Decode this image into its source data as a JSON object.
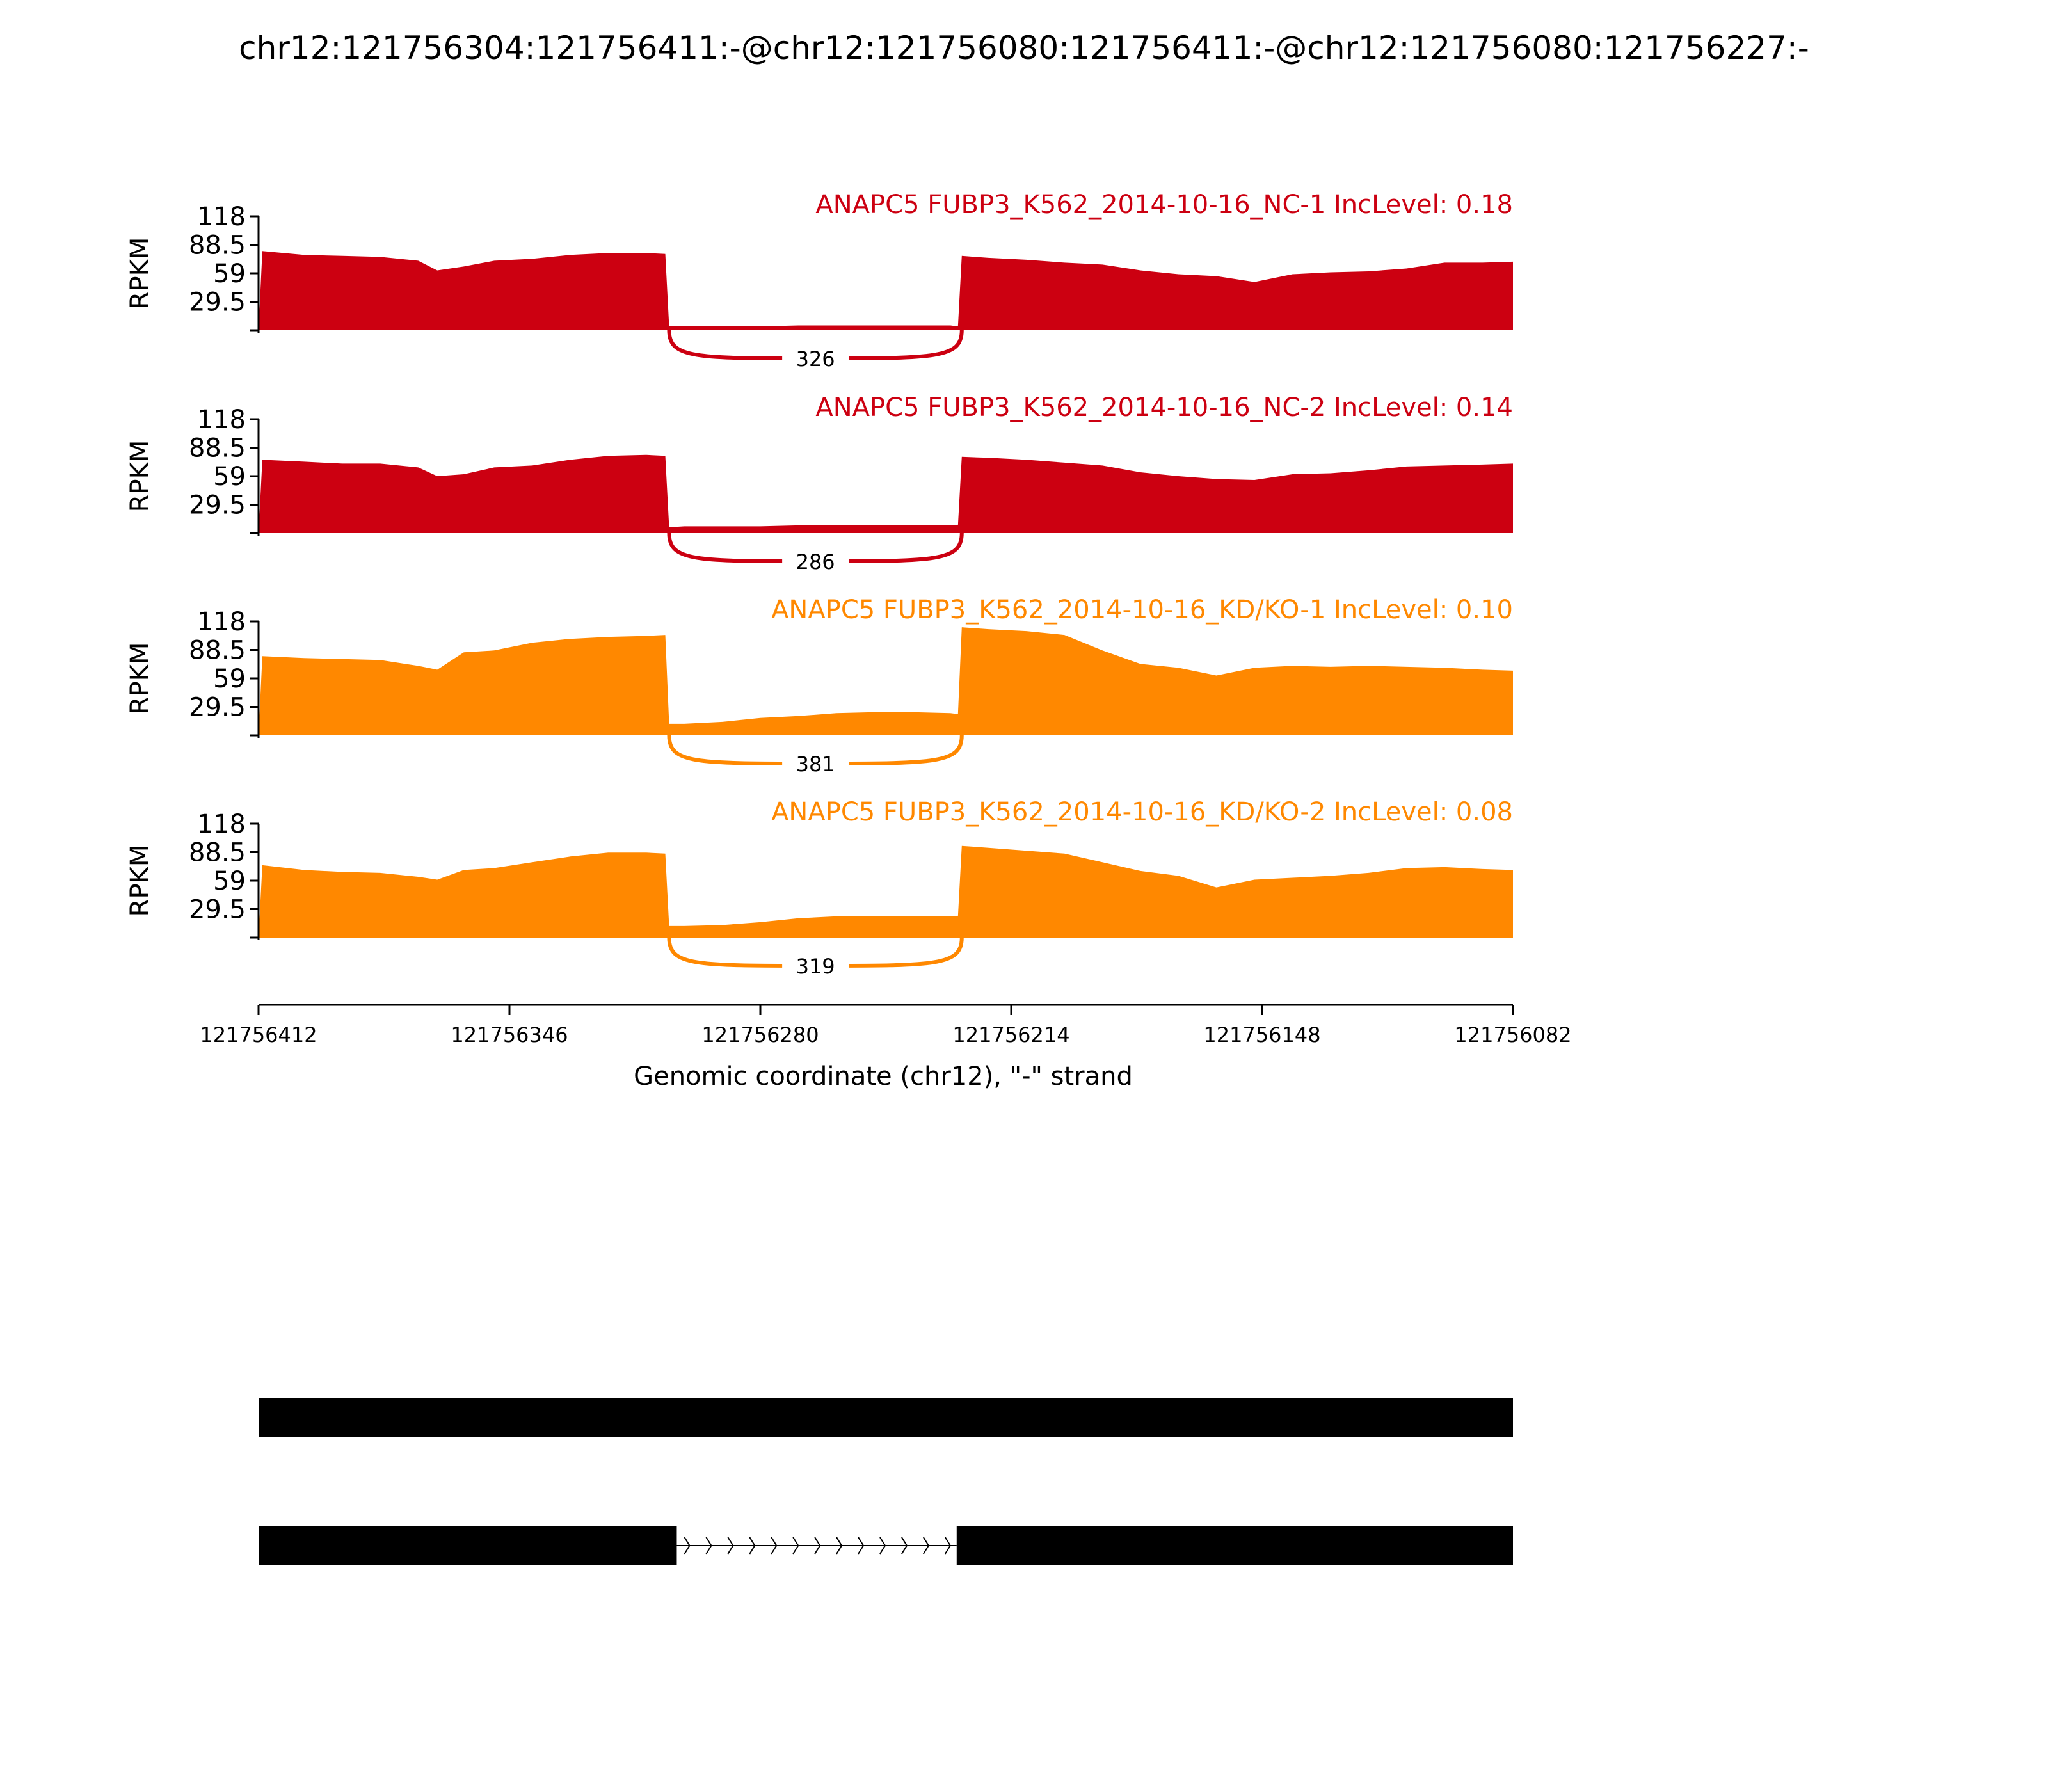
{
  "title": "chr12:121756304:121756411:-@chr12:121756080:121756411:-@chr12:121756080:121756227:-",
  "colors": {
    "nc": "#cc0011",
    "kd": "#ff8800",
    "axis": "#000000",
    "gene": "#000000"
  },
  "chart_data": {
    "type": "area",
    "xlabel": "Genomic coordinate (chr12), \"-\" strand",
    "ylabel": "RPKM",
    "xlim": [
      121756412,
      121756082
    ],
    "x_ticks": [
      "121756412",
      "121756346",
      "121756280",
      "121756214",
      "121756148",
      "121756082"
    ],
    "ylim": [
      0,
      118
    ],
    "y_ticks": [
      "118",
      "88.5",
      "59",
      "29.5"
    ],
    "x": [
      121756412,
      121756411,
      121756400,
      121756390,
      121756380,
      121756370,
      121756365,
      121756358,
      121756350,
      121756340,
      121756330,
      121756320,
      121756310,
      121756305,
      121756304,
      121756300,
      121756290,
      121756280,
      121756270,
      121756260,
      121756250,
      121756240,
      121756230,
      121756228,
      121756227,
      121756220,
      121756210,
      121756200,
      121756190,
      121756180,
      121756170,
      121756160,
      121756150,
      121756140,
      121756130,
      121756120,
      121756110,
      121756100,
      121756090,
      121756082
    ],
    "series": [
      {
        "name": "ANAPC5 FUBP3_K562_2014-10-16_NC-1",
        "inc_level": "0.18",
        "junction_label": "326",
        "color_key": "nc",
        "values": [
          0,
          82,
          78,
          77,
          76,
          72,
          62,
          66,
          72,
          74,
          78,
          80,
          80,
          79,
          4,
          4,
          4,
          4,
          5,
          5,
          5,
          5,
          5,
          4,
          77,
          75,
          73,
          70,
          68,
          62,
          58,
          56,
          50,
          58,
          60,
          61,
          64,
          70,
          70,
          71
        ]
      },
      {
        "name": "ANAPC5 FUBP3_K562_2014-10-16_NC-2",
        "inc_level": "0.14",
        "junction_label": "286",
        "color_key": "nc",
        "values": [
          0,
          76,
          74,
          72,
          72,
          68,
          59,
          61,
          68,
          70,
          76,
          80,
          81,
          80,
          6,
          7,
          7,
          7,
          8,
          8,
          8,
          8,
          8,
          8,
          79,
          78,
          76,
          73,
          70,
          63,
          59,
          56,
          55,
          61,
          62,
          65,
          69,
          70,
          71,
          72
        ]
      },
      {
        "name": "ANAPC5 FUBP3_K562_2014-10-16_KD/KO-1",
        "inc_level": "0.10",
        "junction_label": "381",
        "color_key": "kd",
        "values": [
          0,
          82,
          80,
          79,
          78,
          72,
          68,
          86,
          88,
          96,
          100,
          102,
          103,
          104,
          12,
          12,
          14,
          18,
          20,
          23,
          24,
          24,
          23,
          22,
          112,
          110,
          108,
          104,
          88,
          74,
          70,
          62,
          70,
          72,
          71,
          72,
          71,
          70,
          68,
          67
        ]
      },
      {
        "name": "ANAPC5 FUBP3_K562_2014-10-16_KD/KO-2",
        "inc_level": "0.08",
        "junction_label": "319",
        "color_key": "kd",
        "values": [
          0,
          75,
          70,
          68,
          67,
          63,
          60,
          70,
          72,
          78,
          84,
          88,
          88,
          87,
          12,
          12,
          13,
          16,
          20,
          22,
          22,
          22,
          22,
          22,
          95,
          93,
          90,
          87,
          78,
          69,
          64,
          52,
          60,
          62,
          64,
          67,
          72,
          73,
          71,
          70
        ]
      }
    ]
  }
}
